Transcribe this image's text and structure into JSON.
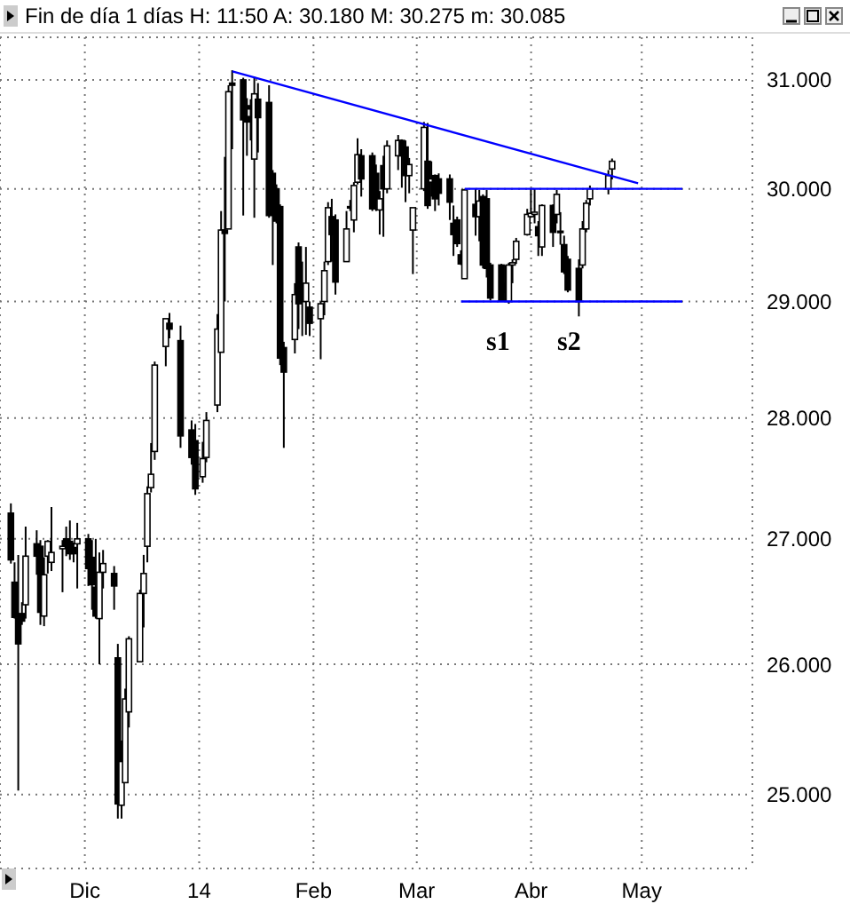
{
  "chart_data": {
    "type": "candlestick",
    "title": "Fin de día 1 días  H: 11:50  A: 30.180  M: 30.275  m: 30.085",
    "x": [
      "2013-11-11",
      "2013-11-12",
      "2013-11-13",
      "2013-11-14",
      "2013-11-15",
      "2013-11-18",
      "2013-11-19",
      "2013-11-20",
      "2013-11-21",
      "2013-11-22",
      "2013-11-25",
      "2013-11-26",
      "2013-11-27",
      "2013-11-28",
      "2013-11-29",
      "2013-12-02",
      "2013-12-03",
      "2013-12-04",
      "2013-12-05",
      "2013-12-06",
      "2013-12-09",
      "2013-12-10",
      "2013-12-11",
      "2013-12-12",
      "2013-12-13",
      "2013-12-16",
      "2013-12-17",
      "2013-12-18",
      "2013-12-19",
      "2013-12-20",
      "2013-12-23",
      "2013-12-24",
      "2013-12-27",
      "2013-12-30",
      "2013-12-31",
      "2014-01-02",
      "2014-01-03",
      "2014-01-06",
      "2014-01-07",
      "2014-01-08",
      "2014-01-09",
      "2014-01-10",
      "2014-01-13",
      "2014-01-14",
      "2014-01-15",
      "2014-01-16",
      "2014-01-17",
      "2014-01-20",
      "2014-01-21",
      "2014-01-22",
      "2014-01-23",
      "2014-01-24",
      "2014-01-27",
      "2014-01-28",
      "2014-01-29",
      "2014-01-30",
      "2014-01-31",
      "2014-02-03",
      "2014-02-04",
      "2014-02-05",
      "2014-02-06",
      "2014-02-07",
      "2014-02-10",
      "2014-02-11",
      "2014-02-12",
      "2014-02-13",
      "2014-02-14",
      "2014-02-17",
      "2014-02-18",
      "2014-02-19",
      "2014-02-20",
      "2014-02-21",
      "2014-02-24",
      "2014-02-25",
      "2014-02-26",
      "2014-02-27",
      "2014-02-28",
      "2014-03-03",
      "2014-03-04",
      "2014-03-05",
      "2014-03-06",
      "2014-03-07",
      "2014-03-10",
      "2014-03-11",
      "2014-03-12",
      "2014-03-13",
      "2014-03-14",
      "2014-03-17",
      "2014-03-18",
      "2014-03-19",
      "2014-03-20",
      "2014-03-21",
      "2014-03-24",
      "2014-03-25",
      "2014-03-26",
      "2014-03-27",
      "2014-03-28",
      "2014-03-31",
      "2014-04-01",
      "2014-04-02",
      "2014-04-03",
      "2014-04-04",
      "2014-04-07",
      "2014-04-08",
      "2014-04-09",
      "2014-04-10",
      "2014-04-11",
      "2014-04-14",
      "2014-04-15",
      "2014-04-16",
      "2014-04-17",
      "2014-04-22",
      "2014-04-23"
    ],
    "ohlc": [
      [
        27.21,
        27.29,
        26.8,
        26.83
      ],
      [
        26.65,
        26.81,
        26.36,
        26.37
      ],
      [
        26.36,
        26.87,
        25.03,
        26.16
      ],
      [
        26.4,
        26.49,
        26.31,
        26.34
      ],
      [
        26.47,
        27.1,
        26.36,
        26.86
      ],
      [
        26.96,
        27.07,
        26.71,
        26.86
      ],
      [
        26.94,
        26.99,
        26.31,
        26.41
      ],
      [
        26.38,
        26.85,
        26.3,
        26.71
      ],
      [
        26.86,
        26.99,
        26.72,
        26.98
      ],
      [
        26.81,
        27.26,
        26.74,
        26.89
      ],
      [
        26.92,
        26.99,
        26.57,
        26.94
      ],
      [
        27.0,
        27.1,
        26.86,
        26.94
      ],
      [
        26.98,
        27.15,
        26.83,
        26.88
      ],
      [
        26.93,
        26.97,
        26.81,
        26.88
      ],
      [
        26.96,
        27.13,
        26.6,
        27.0
      ],
      [
        27.0,
        27.04,
        26.62,
        26.76
      ],
      [
        26.85,
        26.99,
        26.43,
        26.63
      ],
      [
        26.61,
        27.0,
        26.36,
        26.38
      ],
      [
        26.36,
        26.89,
        26.0,
        26.73
      ],
      [
        26.73,
        26.91,
        26.6,
        26.8
      ],
      [
        26.72,
        26.78,
        26.43,
        26.62
      ],
      [
        26.05,
        26.16,
        24.82,
        24.93
      ],
      [
        24.92,
        25.41,
        24.82,
        25.25
      ],
      [
        25.09,
        25.81,
        25.09,
        25.73
      ],
      [
        25.63,
        26.22,
        25.51,
        26.2
      ],
      [
        26.02,
        26.59,
        26.02,
        26.56
      ],
      [
        26.56,
        26.87,
        26.29,
        26.72
      ],
      [
        26.94,
        27.43,
        26.81,
        27.37
      ],
      [
        27.42,
        27.79,
        27.38,
        27.53
      ],
      [
        27.72,
        28.48,
        27.65,
        28.45
      ],
      [
        28.61,
        28.85,
        28.44,
        28.85
      ],
      [
        28.81,
        28.9,
        28.68,
        28.76
      ],
      [
        28.66,
        28.79,
        27.75,
        27.85
      ],
      [
        27.9,
        27.98,
        27.61,
        27.67
      ],
      [
        27.81,
        27.95,
        27.36,
        27.41
      ],
      [
        27.51,
        27.8,
        27.46,
        27.66
      ],
      [
        27.67,
        28.05,
        27.63,
        27.98
      ],
      [
        28.11,
        28.89,
        28.05,
        28.76
      ],
      [
        28.56,
        29.8,
        28.56,
        29.63
      ],
      [
        29.63,
        30.29,
        29.0,
        29.6
      ],
      [
        29.64,
        30.95,
        29.64,
        30.89
      ],
      [
        30.97,
        31.09,
        30.36,
        30.95
      ],
      [
        31.0,
        31.02,
        29.76,
        30.63
      ],
      [
        30.66,
        30.83,
        30.3,
        30.61
      ],
      [
        30.76,
        30.82,
        30.44,
        30.73
      ],
      [
        30.27,
        31.03,
        29.74,
        30.87
      ],
      [
        30.82,
        30.97,
        30.33,
        30.65
      ],
      [
        30.79,
        30.95,
        29.74,
        29.76
      ],
      [
        30.14,
        30.17,
        29.32,
        29.88
      ],
      [
        30.0,
        30.04,
        29.69,
        29.71
      ],
      [
        29.84,
        29.86,
        28.45,
        28.51
      ],
      [
        28.6,
        28.65,
        27.75,
        28.39
      ],
      [
        28.67,
        29.16,
        28.55,
        29.06
      ],
      [
        29.48,
        29.52,
        28.76,
        28.98
      ],
      [
        29.1,
        29.35,
        28.7,
        29.0
      ],
      [
        29.0,
        29.48,
        28.71,
        29.16
      ],
      [
        28.95,
        29.0,
        28.7,
        28.81
      ],
      [
        28.85,
        29.0,
        28.5,
        28.98
      ],
      [
        29.0,
        29.35,
        28.88,
        29.27
      ],
      [
        29.35,
        29.88,
        29.32,
        29.83
      ],
      [
        29.75,
        29.91,
        29.35,
        29.59
      ],
      [
        29.72,
        29.77,
        29.06,
        29.17
      ],
      [
        29.35,
        29.8,
        29.35,
        29.64
      ],
      [
        29.83,
        29.9,
        29.8,
        29.84
      ],
      [
        29.72,
        30.06,
        29.61,
        30.03
      ],
      [
        30.06,
        30.46,
        30.04,
        30.31
      ],
      [
        30.3,
        30.36,
        29.93,
        30.09
      ],
      [
        30.3,
        30.33,
        29.8,
        29.82
      ],
      [
        30.14,
        30.22,
        29.8,
        29.9
      ],
      [
        29.81,
        29.98,
        29.59,
        29.91
      ],
      [
        30.21,
        30.3,
        29.57,
        30.0
      ],
      [
        30.0,
        30.44,
        29.96,
        30.39
      ],
      [
        30.3,
        30.49,
        30.17,
        30.44
      ],
      [
        30.44,
        30.45,
        30.01,
        30.3
      ],
      [
        30.38,
        30.44,
        29.88,
        30.12
      ],
      [
        30.12,
        30.28,
        29.96,
        30.22
      ],
      [
        29.63,
        29.83,
        29.24,
        29.83
      ],
      [
        30.0,
        30.61,
        29.98,
        30.56
      ],
      [
        30.25,
        30.6,
        29.82,
        29.85
      ],
      [
        30.06,
        30.25,
        29.93,
        30.09
      ],
      [
        30.12,
        30.13,
        29.8,
        29.91
      ],
      [
        30.09,
        30.14,
        29.85,
        29.96
      ],
      [
        30.09,
        30.13,
        29.72,
        29.88
      ],
      [
        29.69,
        29.85,
        29.4,
        29.59
      ],
      [
        29.72,
        29.75,
        29.48,
        29.51
      ],
      [
        29.41,
        29.45,
        29.32,
        29.33
      ],
      [
        29.2,
        30.0,
        29.2,
        29.99
      ],
      [
        29.86,
        30.0,
        29.58,
        29.75
      ],
      [
        29.75,
        29.99,
        29.53,
        29.89
      ],
      [
        29.93,
        29.95,
        29.29,
        29.32
      ],
      [
        29.91,
        29.99,
        29.21,
        29.29
      ],
      [
        29.32,
        29.34,
        29.01,
        29.03
      ],
      [
        29.32,
        29.33,
        29.0,
        29.01
      ],
      [
        29.16,
        29.32,
        29.0,
        29.08
      ],
      [
        29.0,
        29.34,
        28.98,
        29.32
      ],
      [
        29.32,
        29.37,
        29.16,
        29.34
      ],
      [
        29.37,
        29.56,
        29.33,
        29.53
      ],
      [
        29.59,
        29.82,
        29.58,
        29.77
      ],
      [
        29.75,
        30.0,
        29.74,
        29.78
      ],
      [
        29.77,
        30.0,
        29.69,
        29.79
      ],
      [
        29.66,
        29.71,
        29.4,
        29.58
      ],
      [
        29.48,
        29.86,
        29.4,
        29.85
      ],
      [
        29.85,
        29.86,
        29.48,
        29.61
      ],
      [
        29.77,
        29.99,
        29.69,
        29.95
      ],
      [
        29.61,
        29.79,
        29.5,
        29.62
      ],
      [
        29.5,
        29.58,
        29.24,
        29.26
      ],
      [
        29.37,
        29.4,
        29.08,
        29.1
      ],
      [
        29.29,
        29.37,
        28.87,
        29.0
      ],
      [
        29.32,
        29.71,
        29.29,
        29.64
      ],
      [
        29.64,
        29.9,
        29.61,
        29.87
      ],
      [
        29.91,
        30.03,
        29.85,
        30.0
      ],
      [
        30.0,
        30.17,
        29.95,
        30.12
      ],
      [
        30.18,
        30.275,
        30.085,
        30.25
      ]
    ],
    "series": [
      {
        "type": "line",
        "color": "#0000ff",
        "x": [
          "2014-01-10",
          "2014-04-30"
        ],
        "values": [
          31.08,
          30.05
        ]
      },
      {
        "type": "line",
        "color": "#0000ff",
        "x": [
          "2014-03-14",
          "2014-05-12"
        ],
        "values": [
          30.0,
          30.0
        ]
      },
      {
        "type": "line",
        "color": "#0000ff",
        "x": [
          "2014-03-13",
          "2014-05-12"
        ],
        "values": [
          29.0,
          29.0
        ]
      }
    ],
    "annotations": [
      "s1",
      "s2"
    ],
    "xlim": [
      "2013-11-08",
      "2014-05-31"
    ],
    "xticks": [
      {
        "value": "2013-12-01",
        "label": "Dic"
      },
      {
        "value": "2014-01-01",
        "label": "14"
      },
      {
        "value": "2014-02-01",
        "label": "Feb"
      },
      {
        "value": "2014-03-01",
        "label": "Mar"
      },
      {
        "value": "2014-04-01",
        "label": "Abr"
      },
      {
        "value": "2014-05-01",
        "label": "May"
      }
    ],
    "ylim": [
      24.45,
      31.4
    ],
    "yticks": [
      {
        "value": 25,
        "label": "25.000"
      },
      {
        "value": 26,
        "label": "26.000"
      },
      {
        "value": 27,
        "label": "27.000"
      },
      {
        "value": 28,
        "label": "28.000"
      },
      {
        "value": 29,
        "label": "29.000"
      },
      {
        "value": 30,
        "label": "30.000"
      },
      {
        "value": 31,
        "label": "31.000"
      }
    ],
    "log": true,
    "grid": true
  }
}
